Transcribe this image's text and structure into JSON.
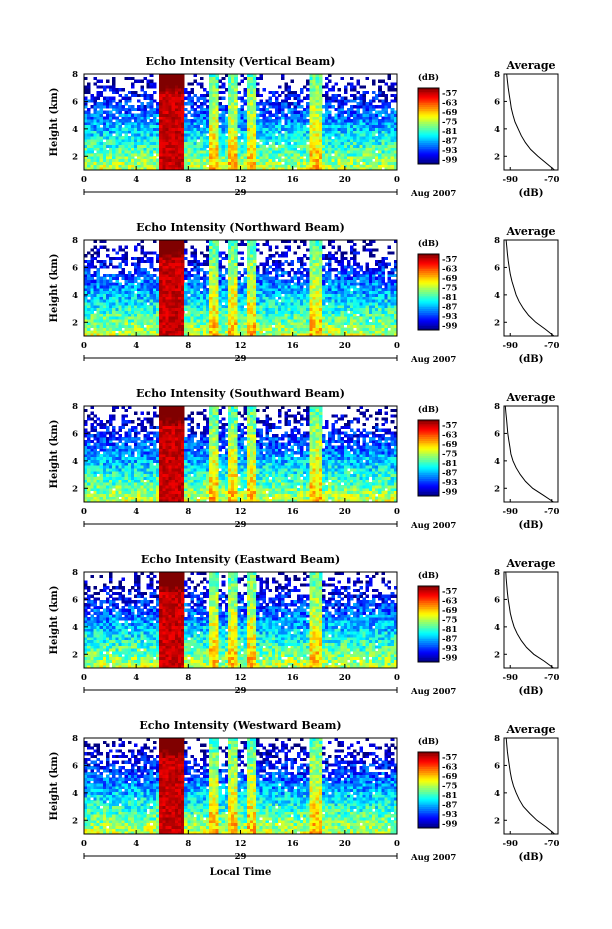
{
  "figure": {
    "xlabel": "Local Time",
    "date_label": "29",
    "date_suffix": "Aug 2007",
    "colorbar_unit": "(dB)",
    "avg_title": "Average",
    "avg_xlabel": "(dB)"
  },
  "chart_data": [
    {
      "type": "heatmap",
      "title": "Echo Intensity (Vertical Beam)",
      "ylabel": "Height (km)",
      "xlabel": "",
      "x_ticks": [
        "0",
        "4",
        "8",
        "12",
        "16",
        "20",
        "0"
      ],
      "y_ticks": [
        "2",
        "4",
        "6",
        "8"
      ],
      "xlim": [
        0,
        24
      ],
      "ylim": [
        1,
        8
      ],
      "colorbar_ticks": [
        "-57",
        "-63",
        "-69",
        "-75",
        "-81",
        "-87",
        "-93",
        "-99"
      ],
      "colorbar_range": [
        -99,
        -57
      ],
      "rain_bands_hours": [
        [
          5.8,
          7.6
        ],
        [
          9.7,
          10.3
        ],
        [
          11.0,
          11.7
        ],
        [
          12.6,
          13.3
        ],
        [
          17.3,
          18.3
        ]
      ],
      "average_profile": {
        "title": "Average",
        "xlabel": "(dB)",
        "x_ticks": [
          "-90",
          "-70"
        ],
        "y_ticks": [
          "2",
          "4",
          "6",
          "8"
        ],
        "xlim": [
          -93,
          -67
        ],
        "ylim": [
          1,
          8
        ],
        "height_km": [
          1.0,
          1.5,
          2.0,
          2.5,
          3.0,
          3.5,
          4.0,
          4.5,
          5.0,
          5.5,
          6.0,
          6.5,
          7.0,
          7.5,
          8.0
        ],
        "echo_db": [
          -68.5,
          -72.5,
          -76.5,
          -80.0,
          -82.5,
          -84.5,
          -86.0,
          -87.5,
          -88.5,
          -89.3,
          -89.8,
          -90.3,
          -90.8,
          -91.2,
          -91.5
        ]
      }
    },
    {
      "type": "heatmap",
      "title": "Echo Intensity (Northward Beam)",
      "ylabel": "Height (km)",
      "xlabel": "",
      "x_ticks": [
        "0",
        "4",
        "8",
        "12",
        "16",
        "20",
        "0"
      ],
      "y_ticks": [
        "2",
        "4",
        "6",
        "8"
      ],
      "xlim": [
        0,
        24
      ],
      "ylim": [
        1,
        8
      ],
      "colorbar_ticks": [
        "-57",
        "-63",
        "-69",
        "-75",
        "-81",
        "-87",
        "-93",
        "-99"
      ],
      "colorbar_range": [
        -99,
        -57
      ],
      "rain_bands_hours": [
        [
          5.8,
          7.6
        ],
        [
          9.7,
          10.3
        ],
        [
          11.0,
          11.7
        ],
        [
          12.6,
          13.3
        ],
        [
          17.3,
          18.3
        ]
      ],
      "average_profile": {
        "title": "Average",
        "xlabel": "(dB)",
        "x_ticks": [
          "-90",
          "-70"
        ],
        "y_ticks": [
          "2",
          "4",
          "6",
          "8"
        ],
        "xlim": [
          -93,
          -67
        ],
        "ylim": [
          1,
          8
        ],
        "height_km": [
          1.0,
          1.5,
          2.0,
          2.5,
          3.0,
          3.5,
          4.0,
          4.5,
          5.0,
          5.5,
          6.0,
          6.5,
          7.0,
          7.5,
          8.0
        ],
        "echo_db": [
          -68.8,
          -73.0,
          -77.5,
          -81.0,
          -83.5,
          -85.5,
          -87.0,
          -88.0,
          -89.0,
          -89.8,
          -90.3,
          -90.8,
          -91.2,
          -91.5,
          -91.8
        ]
      }
    },
    {
      "type": "heatmap",
      "title": "Echo Intensity (Southward Beam)",
      "ylabel": "Height (km)",
      "xlabel": "",
      "x_ticks": [
        "0",
        "4",
        "8",
        "12",
        "16",
        "20",
        "0"
      ],
      "y_ticks": [
        "2",
        "4",
        "6",
        "8"
      ],
      "xlim": [
        0,
        24
      ],
      "ylim": [
        1,
        8
      ],
      "colorbar_ticks": [
        "-57",
        "-63",
        "-69",
        "-75",
        "-81",
        "-87",
        "-93",
        "-99"
      ],
      "colorbar_range": [
        -99,
        -57
      ],
      "rain_bands_hours": [
        [
          5.8,
          7.6
        ],
        [
          9.7,
          10.3
        ],
        [
          11.0,
          11.7
        ],
        [
          12.6,
          13.3
        ],
        [
          17.3,
          18.3
        ]
      ],
      "average_profile": {
        "title": "Average",
        "xlabel": "(dB)",
        "x_ticks": [
          "-90",
          "-70"
        ],
        "y_ticks": [
          "2",
          "4",
          "6",
          "8"
        ],
        "xlim": [
          -93,
          -67
        ],
        "ylim": [
          1,
          8
        ],
        "height_km": [
          1.0,
          1.5,
          2.0,
          2.5,
          3.0,
          3.5,
          4.0,
          4.5,
          5.0,
          5.5,
          6.0,
          6.5,
          7.0,
          7.5,
          8.0
        ],
        "echo_db": [
          -69.0,
          -74.0,
          -79.0,
          -82.5,
          -85.0,
          -87.0,
          -88.5,
          -89.5,
          -90.0,
          -90.5,
          -91.0,
          -91.3,
          -91.6,
          -91.9,
          -92.2
        ]
      }
    },
    {
      "type": "heatmap",
      "title": "Echo Intensity (Eastward Beam)",
      "ylabel": "Height (km)",
      "xlabel": "",
      "x_ticks": [
        "0",
        "4",
        "8",
        "12",
        "16",
        "20",
        "0"
      ],
      "y_ticks": [
        "2",
        "4",
        "6",
        "8"
      ],
      "xlim": [
        0,
        24
      ],
      "ylim": [
        1,
        8
      ],
      "colorbar_ticks": [
        "-57",
        "-63",
        "-69",
        "-75",
        "-81",
        "-87",
        "-93",
        "-99"
      ],
      "colorbar_range": [
        -99,
        -57
      ],
      "rain_bands_hours": [
        [
          5.8,
          7.6
        ],
        [
          9.7,
          10.3
        ],
        [
          11.0,
          11.7
        ],
        [
          12.6,
          13.3
        ],
        [
          17.3,
          18.3
        ]
      ],
      "average_profile": {
        "title": "Average",
        "xlabel": "(dB)",
        "x_ticks": [
          "-90",
          "-70"
        ],
        "y_ticks": [
          "2",
          "4",
          "6",
          "8"
        ],
        "xlim": [
          -93,
          -67
        ],
        "ylim": [
          1,
          8
        ],
        "height_km": [
          1.0,
          1.5,
          2.0,
          2.5,
          3.0,
          3.5,
          4.0,
          4.5,
          5.0,
          5.5,
          6.0,
          6.5,
          7.0,
          7.5,
          8.0
        ],
        "echo_db": [
          -69.0,
          -73.5,
          -78.5,
          -82.0,
          -84.5,
          -86.5,
          -88.0,
          -89.0,
          -89.8,
          -90.3,
          -90.8,
          -91.2,
          -91.5,
          -91.8,
          -92.0
        ]
      }
    },
    {
      "type": "heatmap",
      "title": "Echo Intensity (Westward Beam)",
      "ylabel": "Height (km)",
      "xlabel": "Local Time",
      "x_ticks": [
        "0",
        "4",
        "8",
        "12",
        "16",
        "20",
        "0"
      ],
      "y_ticks": [
        "2",
        "4",
        "6",
        "8"
      ],
      "xlim": [
        0,
        24
      ],
      "ylim": [
        1,
        8
      ],
      "colorbar_ticks": [
        "-57",
        "-63",
        "-69",
        "-75",
        "-81",
        "-87",
        "-93",
        "-99"
      ],
      "colorbar_range": [
        -99,
        -57
      ],
      "rain_bands_hours": [
        [
          5.8,
          7.6
        ],
        [
          9.7,
          10.3
        ],
        [
          11.0,
          11.7
        ],
        [
          12.6,
          13.3
        ],
        [
          17.3,
          18.3
        ]
      ],
      "average_profile": {
        "title": "Average",
        "xlabel": "(dB)",
        "x_ticks": [
          "-90",
          "-70"
        ],
        "y_ticks": [
          "2",
          "4",
          "6",
          "8"
        ],
        "xlim": [
          -93,
          -67
        ],
        "ylim": [
          1,
          8
        ],
        "height_km": [
          1.0,
          1.5,
          2.0,
          2.5,
          3.0,
          3.5,
          4.0,
          4.5,
          5.0,
          5.5,
          6.0,
          6.5,
          7.0,
          7.5,
          8.0
        ],
        "echo_db": [
          -68.5,
          -72.5,
          -77.0,
          -80.5,
          -83.5,
          -85.5,
          -87.0,
          -88.3,
          -89.2,
          -89.8,
          -90.3,
          -90.8,
          -91.2,
          -91.5,
          -91.8
        ]
      }
    }
  ]
}
